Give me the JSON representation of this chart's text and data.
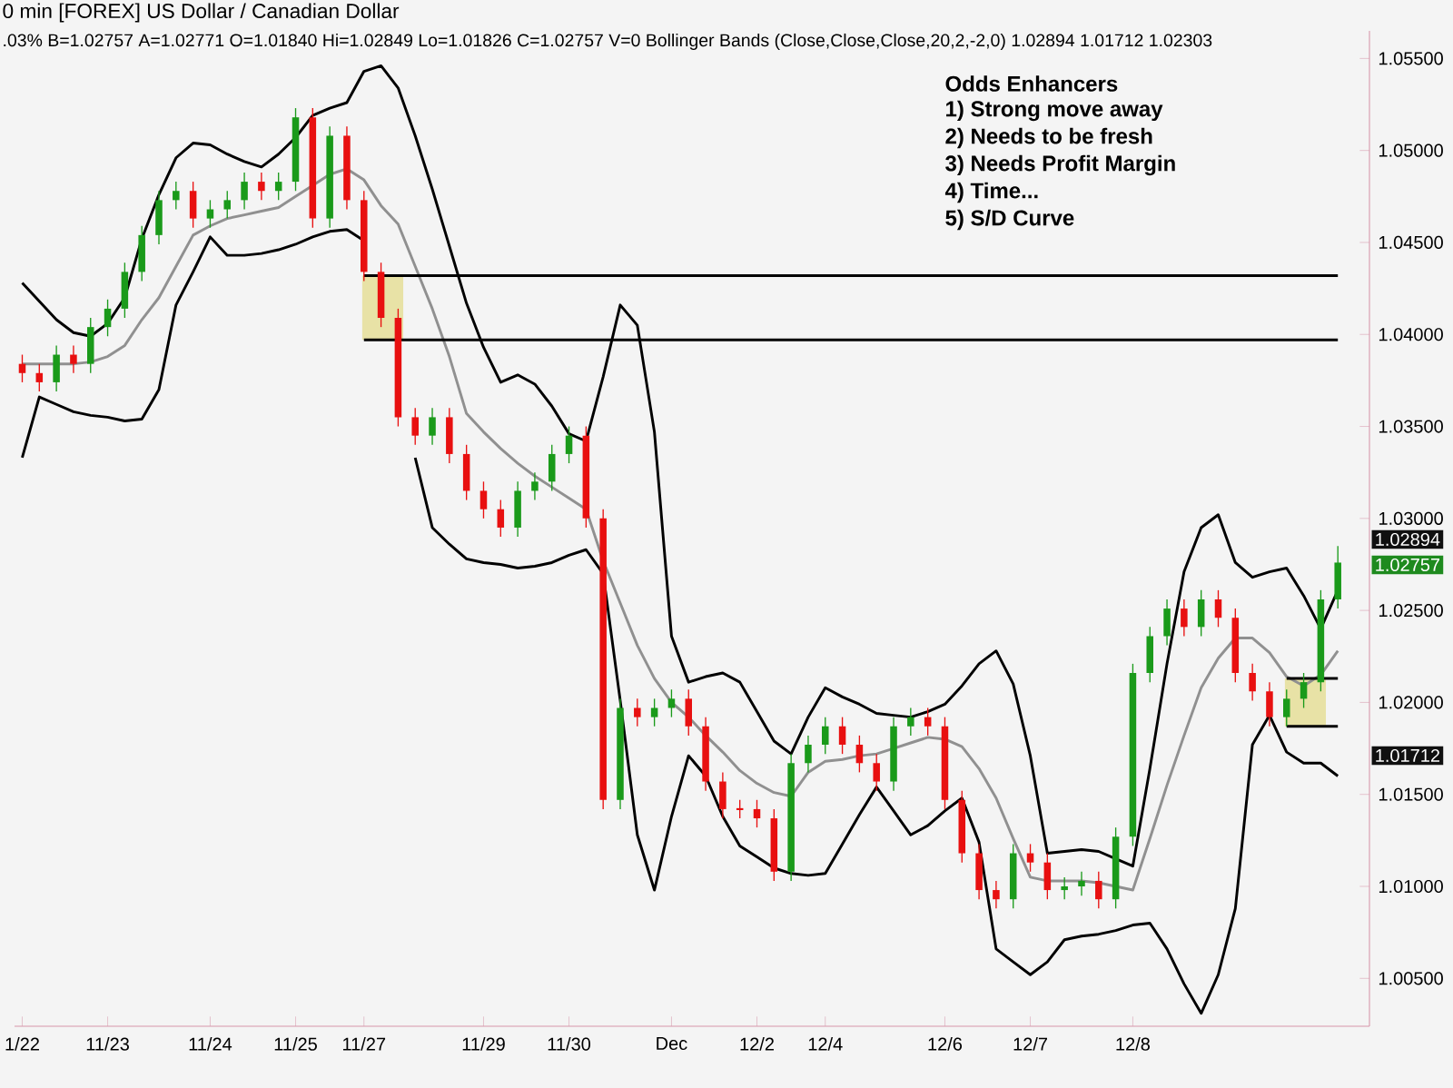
{
  "chart_data": {
    "type": "candlestick",
    "title": "0 min [FOREX] US Dollar / Canadian Dollar",
    "subtitle": ".03%  B=1.02757  A=1.02771  O=1.01840  Hi=1.02849  Lo=1.01826  C=1.02757  V=0  Bollinger Bands (Close,Close,Close,20,2,-2,0)  1.02894  1.01712  1.02303",
    "categories": [
      "1/22",
      null,
      null,
      null,
      null,
      "11/23",
      null,
      null,
      null,
      null,
      null,
      "11/24",
      null,
      null,
      null,
      null,
      "11/25",
      null,
      null,
      null,
      "11/27",
      null,
      null,
      null,
      null,
      null,
      null,
      "11/29",
      null,
      null,
      null,
      null,
      "11/30",
      null,
      null,
      null,
      null,
      null,
      "Dec",
      null,
      null,
      null,
      null,
      "12/2",
      null,
      null,
      null,
      "12/4",
      null,
      null,
      null,
      null,
      null,
      null,
      "12/6",
      null,
      null,
      null,
      null,
      "12/7",
      null,
      null,
      null,
      null,
      null,
      "12/8",
      null,
      null,
      null,
      null,
      null,
      null,
      null,
      null,
      null,
      null,
      null,
      null
    ],
    "ohlc": [
      [
        1.0384,
        1.0389,
        1.0374,
        1.0379
      ],
      [
        1.0379,
        1.0384,
        1.0369,
        1.0374
      ],
      [
        1.0374,
        1.0394,
        1.0369,
        1.0389
      ],
      [
        1.0389,
        1.0394,
        1.0379,
        1.0384
      ],
      [
        1.0384,
        1.0409,
        1.0379,
        1.0404
      ],
      [
        1.0404,
        1.0419,
        1.0399,
        1.0414
      ],
      [
        1.0414,
        1.0439,
        1.0409,
        1.0434
      ],
      [
        1.0434,
        1.0459,
        1.0429,
        1.0454
      ],
      [
        1.0454,
        1.0478,
        1.0449,
        1.0473
      ],
      [
        1.0473,
        1.0483,
        1.0468,
        1.0478
      ],
      [
        1.0478,
        1.0483,
        1.0458,
        1.0463
      ],
      [
        1.0463,
        1.0473,
        1.0458,
        1.0468
      ],
      [
        1.0468,
        1.0478,
        1.0463,
        1.0473
      ],
      [
        1.0473,
        1.0488,
        1.0468,
        1.0483
      ],
      [
        1.0483,
        1.0488,
        1.0473,
        1.0478
      ],
      [
        1.0478,
        1.0488,
        1.0473,
        1.0483
      ],
      [
        1.0483,
        1.0523,
        1.0478,
        1.0518
      ],
      [
        1.0518,
        1.0523,
        1.0458,
        1.0463
      ],
      [
        1.0463,
        1.0513,
        1.0458,
        1.0508
      ],
      [
        1.0508,
        1.0513,
        1.0468,
        1.0473
      ],
      [
        1.0473,
        1.0478,
        1.0429,
        1.0434
      ],
      [
        1.0434,
        1.0439,
        1.0404,
        1.0409
      ],
      [
        1.0409,
        1.0414,
        1.035,
        1.0355
      ],
      [
        1.0355,
        1.036,
        1.034,
        1.0345
      ],
      [
        1.0345,
        1.036,
        1.034,
        1.0355
      ],
      [
        1.0355,
        1.036,
        1.033,
        1.0335
      ],
      [
        1.0335,
        1.034,
        1.031,
        1.0315
      ],
      [
        1.0315,
        1.032,
        1.03,
        1.0305
      ],
      [
        1.0305,
        1.031,
        1.029,
        1.0295
      ],
      [
        1.0295,
        1.032,
        1.029,
        1.0315
      ],
      [
        1.0315,
        1.0325,
        1.031,
        1.032
      ],
      [
        1.032,
        1.034,
        1.0315,
        1.0335
      ],
      [
        1.0335,
        1.035,
        1.033,
        1.0345
      ],
      [
        1.0345,
        1.035,
        1.0295,
        1.03
      ],
      [
        1.03,
        1.0305,
        1.0142,
        1.0147
      ],
      [
        1.0147,
        1.0202,
        1.0142,
        1.0197
      ],
      [
        1.0197,
        1.0202,
        1.0187,
        1.0192
      ],
      [
        1.0192,
        1.0202,
        1.0187,
        1.0197
      ],
      [
        1.0197,
        1.0207,
        1.0192,
        1.0202
      ],
      [
        1.0202,
        1.0207,
        1.0182,
        1.0187
      ],
      [
        1.0187,
        1.0192,
        1.0152,
        1.0157
      ],
      [
        1.0157,
        1.0162,
        1.0137,
        1.0142
      ],
      [
        1.0142,
        1.0147,
        1.0137,
        1.0142
      ],
      [
        1.0142,
        1.0147,
        1.0132,
        1.0137
      ],
      [
        1.0137,
        1.0142,
        1.0103,
        1.0108
      ],
      [
        1.0108,
        1.0172,
        1.0103,
        1.0167
      ],
      [
        1.0167,
        1.0182,
        1.0162,
        1.0177
      ],
      [
        1.0177,
        1.0192,
        1.0172,
        1.0187
      ],
      [
        1.0187,
        1.0192,
        1.0172,
        1.0177
      ],
      [
        1.0177,
        1.0182,
        1.0162,
        1.0167
      ],
      [
        1.0167,
        1.0172,
        1.0152,
        1.0157
      ],
      [
        1.0157,
        1.0192,
        1.0152,
        1.0187
      ],
      [
        1.0187,
        1.0197,
        1.0182,
        1.0192
      ],
      [
        1.0192,
        1.0197,
        1.0182,
        1.0187
      ],
      [
        1.0187,
        1.0192,
        1.0142,
        1.0147
      ],
      [
        1.0147,
        1.0152,
        1.0113,
        1.0118
      ],
      [
        1.0118,
        1.0123,
        1.0093,
        1.0098
      ],
      [
        1.0098,
        1.0103,
        1.0088,
        1.0093
      ],
      [
        1.0093,
        1.0123,
        1.0088,
        1.0118
      ],
      [
        1.0118,
        1.0123,
        1.0108,
        1.0113
      ],
      [
        1.0113,
        1.0118,
        1.0093,
        1.0098
      ],
      [
        1.0098,
        1.0105,
        1.0093,
        1.01
      ],
      [
        1.01,
        1.0108,
        1.0095,
        1.0103
      ],
      [
        1.0103,
        1.0108,
        1.0088,
        1.0093
      ],
      [
        1.0093,
        1.0132,
        1.0088,
        1.0127
      ],
      [
        1.0127,
        1.0221,
        1.0122,
        1.0216
      ],
      [
        1.0216,
        1.0241,
        1.0211,
        1.0236
      ],
      [
        1.0236,
        1.0256,
        1.0231,
        1.0251
      ],
      [
        1.0251,
        1.0256,
        1.0236,
        1.0241
      ],
      [
        1.0241,
        1.0261,
        1.0236,
        1.0256
      ],
      [
        1.0256,
        1.0261,
        1.0241,
        1.0246
      ],
      [
        1.0246,
        1.0251,
        1.0211,
        1.0216
      ],
      [
        1.0216,
        1.0221,
        1.0201,
        1.0206
      ],
      [
        1.0206,
        1.0211,
        1.0187,
        1.0192
      ],
      [
        1.0192,
        1.0207,
        1.0187,
        1.0202
      ],
      [
        1.0202,
        1.0216,
        1.0197,
        1.0211
      ],
      [
        1.0211,
        1.0261,
        1.0206,
        1.0256
      ],
      [
        1.0256,
        1.0285,
        1.0251,
        1.0276
      ]
    ],
    "colors": [
      "#e81010",
      "#e81010",
      "#1a9a1a",
      "#e81010",
      "#1a9a1a",
      "#1a9a1a",
      "#1a9a1a",
      "#1a9a1a",
      "#1a9a1a",
      "#1a9a1a",
      "#e81010",
      "#1a9a1a",
      "#1a9a1a",
      "#1a9a1a",
      "#e81010",
      "#1a9a1a",
      "#1a9a1a",
      "#e81010",
      "#1a9a1a",
      "#e81010",
      "#e81010",
      "#e81010",
      "#e81010",
      "#e81010",
      "#1a9a1a",
      "#e81010",
      "#e81010",
      "#e81010",
      "#e81010",
      "#1a9a1a",
      "#1a9a1a",
      "#1a9a1a",
      "#1a9a1a",
      "#e81010",
      "#e81010",
      "#1a9a1a",
      "#e81010",
      "#1a9a1a",
      "#1a9a1a",
      "#e81010",
      "#e81010",
      "#e81010",
      "#e81010",
      "#e81010",
      "#e81010",
      "#1a9a1a",
      "#1a9a1a",
      "#1a9a1a",
      "#e81010",
      "#e81010",
      "#e81010",
      "#1a9a1a",
      "#1a9a1a",
      "#e81010",
      "#e81010",
      "#e81010",
      "#e81010",
      "#e81010",
      "#1a9a1a",
      "#e81010",
      "#e81010",
      "#1a9a1a",
      "#1a9a1a",
      "#e81010",
      "#1a9a1a",
      "#1a9a1a",
      "#1a9a1a",
      "#1a9a1a",
      "#e81010",
      "#1a9a1a",
      "#e81010",
      "#e81010",
      "#e81010",
      "#e81010",
      "#1a9a1a",
      "#1a9a1a",
      "#1a9a1a",
      "#1a9a1a"
    ],
    "series": [
      {
        "type": "line",
        "color": "#000000",
        "values": [
          1.0428,
          1.0418,
          1.0408,
          1.0401,
          1.0399,
          1.0406,
          1.042,
          1.0452,
          1.0476,
          1.0496,
          1.0504,
          1.0503,
          1.0498,
          1.0494,
          1.0491,
          1.0498,
          1.0507,
          1.0519,
          1.0523,
          1.0526,
          1.0543,
          1.0546,
          1.0534,
          1.0508,
          1.0479,
          1.0448,
          1.0417,
          1.0393,
          1.0374,
          1.0378,
          1.0373,
          1.0361,
          1.0346,
          1.0342,
          1.0377,
          1.0416,
          1.0405,
          1.0347,
          1.0236,
          1.0211,
          1.0214,
          1.0216,
          1.0211,
          1.0195,
          1.0179,
          1.0172,
          1.0192,
          1.0208,
          1.0203,
          1.0199,
          1.0194,
          1.0193,
          1.0192,
          1.0195,
          1.0199,
          1.0209,
          1.0221,
          1.0228,
          1.021,
          1.0171,
          1.0118,
          1.0119,
          1.012,
          1.0119,
          1.0115,
          1.0111,
          1.0164,
          1.0221,
          1.0271,
          1.0295,
          1.0302,
          1.0276,
          1.0268,
          1.0271,
          1.0273,
          1.0258,
          1.024,
          1.0261
        ]
      },
      {
        "type": "line",
        "color": "#000000",
        "values": [
          1.0333,
          1.0366,
          1.0362,
          1.0358,
          1.0356,
          1.0355,
          1.0353,
          1.0354,
          1.037,
          1.0416,
          1.0434,
          1.0453,
          1.0443,
          1.0443,
          1.0444,
          1.0446,
          1.0449,
          1.0453,
          1.0456,
          1.0457,
          1.0451,
          null,
          null,
          1.0333,
          1.0295,
          1.0286,
          1.0278,
          1.0276,
          1.0275,
          1.0273,
          1.0274,
          1.0276,
          1.028,
          1.0283,
          1.027,
          1.0201,
          1.0128,
          1.0098,
          1.0138,
          1.0171,
          1.016,
          1.0138,
          1.0122,
          1.0116,
          1.011,
          1.0107,
          1.0106,
          1.0107,
          1.0123,
          1.0139,
          1.0154,
          1.0141,
          1.0128,
          1.0133,
          1.0141,
          1.0148,
          1.0124,
          1.0066,
          1.0059,
          1.0052,
          1.0059,
          1.0071,
          1.0073,
          1.0074,
          1.0076,
          1.0079,
          1.008,
          1.0066,
          1.0047,
          1.0031,
          1.0052,
          1.0088,
          1.0177,
          1.0193,
          1.0173,
          1.0167,
          1.0167,
          1.016
        ]
      },
      {
        "type": "line",
        "color": "#909090",
        "values": [
          1.0384,
          1.0384,
          1.0384,
          1.0384,
          1.0385,
          1.0388,
          1.0394,
          1.0408,
          1.042,
          1.0437,
          1.0454,
          1.0459,
          1.0463,
          1.0465,
          1.0467,
          1.0469,
          1.0475,
          1.0481,
          1.0487,
          1.049,
          1.0484,
          1.047,
          1.046,
          1.0437,
          1.0414,
          1.0388,
          1.0357,
          1.0347,
          1.0338,
          1.033,
          1.0323,
          1.0317,
          1.0311,
          1.0305,
          1.0277,
          1.0254,
          1.0231,
          1.0213,
          1.02,
          1.0192,
          1.0182,
          1.0173,
          1.0163,
          1.0156,
          1.0151,
          1.0149,
          1.0162,
          1.0168,
          1.0169,
          1.0171,
          1.0172,
          1.0175,
          1.0178,
          1.0181,
          1.018,
          1.0176,
          1.0164,
          1.0148,
          1.0126,
          1.0105,
          1.0103,
          1.0103,
          1.0103,
          1.0102,
          1.01,
          1.0098,
          1.0126,
          1.0155,
          1.0182,
          1.0208,
          1.0224,
          1.0235,
          1.0235,
          1.0227,
          1.0214,
          1.0209,
          1.0215,
          1.0228
        ]
      },
      {
        "type": "line",
        "color": "#000000",
        "values": [
          null,
          null,
          null,
          null,
          null,
          null,
          null,
          null,
          null,
          null,
          null,
          null,
          null,
          null,
          null,
          null,
          null,
          null,
          null,
          null,
          1.0432,
          1.0432,
          1.0432,
          1.0432,
          1.0432,
          1.0432,
          1.0432,
          1.0432,
          1.0432,
          1.0432,
          1.0432,
          1.0432,
          1.0432,
          1.0432,
          1.0432,
          1.0432,
          1.0432,
          1.0432,
          1.0432,
          1.0432,
          1.0432,
          1.0432,
          1.0432,
          1.0432,
          1.0432,
          1.0432,
          1.0432,
          1.0432,
          1.0432,
          1.0432,
          1.0432,
          1.0432,
          1.0432,
          1.0432,
          1.0432,
          1.0432,
          1.0432,
          1.0432,
          1.0432,
          1.0432,
          1.0432,
          1.0432,
          1.0432,
          1.0432,
          1.0432,
          1.0432,
          1.0432,
          1.0432,
          1.0432,
          1.0432,
          1.0432,
          1.0432,
          1.0432,
          1.0432,
          1.0432,
          1.0432,
          1.0432,
          1.0432
        ]
      },
      {
        "type": "line",
        "color": "#000000",
        "values": [
          null,
          null,
          null,
          null,
          null,
          null,
          null,
          null,
          null,
          null,
          null,
          null,
          null,
          null,
          null,
          null,
          null,
          null,
          null,
          null,
          1.0397,
          1.0397,
          1.0397,
          1.0397,
          1.0397,
          1.0397,
          1.0397,
          1.0397,
          1.0397,
          1.0397,
          1.0397,
          1.0397,
          1.0397,
          1.0397,
          1.0397,
          1.0397,
          1.0397,
          1.0397,
          1.0397,
          1.0397,
          1.0397,
          1.0397,
          1.0397,
          1.0397,
          1.0397,
          1.0397,
          1.0397,
          1.0397,
          1.0397,
          1.0397,
          1.0397,
          1.0397,
          1.0397,
          1.0397,
          1.0397,
          1.0397,
          1.0397,
          1.0397,
          1.0397,
          1.0397,
          1.0397,
          1.0397,
          1.0397,
          1.0397,
          1.0397,
          1.0397,
          1.0397,
          1.0397,
          1.0397,
          1.0397,
          1.0397,
          1.0397,
          1.0397,
          1.0397,
          1.0397,
          1.0397,
          1.0397,
          1.0397
        ]
      },
      {
        "type": "line",
        "color": "#000000",
        "values": [
          null,
          null,
          null,
          null,
          null,
          null,
          null,
          null,
          null,
          null,
          null,
          null,
          null,
          null,
          null,
          null,
          null,
          null,
          null,
          null,
          null,
          null,
          null,
          null,
          null,
          null,
          null,
          null,
          null,
          null,
          null,
          null,
          null,
          null,
          null,
          null,
          null,
          null,
          null,
          null,
          null,
          null,
          null,
          null,
          null,
          null,
          null,
          null,
          null,
          null,
          null,
          null,
          null,
          null,
          null,
          null,
          null,
          null,
          null,
          null,
          null,
          null,
          null,
          null,
          null,
          null,
          null,
          null,
          null,
          null,
          null,
          null,
          null,
          null,
          1.0213,
          1.0213,
          1.0213,
          1.0213
        ]
      },
      {
        "type": "line",
        "color": "#000000",
        "values": [
          null,
          null,
          null,
          null,
          null,
          null,
          null,
          null,
          null,
          null,
          null,
          null,
          null,
          null,
          null,
          null,
          null,
          null,
          null,
          null,
          null,
          null,
          null,
          null,
          null,
          null,
          null,
          null,
          null,
          null,
          null,
          null,
          null,
          null,
          null,
          null,
          null,
          null,
          null,
          null,
          null,
          null,
          null,
          null,
          null,
          null,
          null,
          null,
          null,
          null,
          null,
          null,
          null,
          null,
          null,
          null,
          null,
          null,
          null,
          null,
          null,
          null,
          null,
          null,
          null,
          null,
          null,
          null,
          null,
          null,
          null,
          null,
          null,
          null,
          1.0187,
          1.0187,
          1.0187,
          1.0187
        ]
      }
    ],
    "ylim": [
      1.0024,
      1.0565
    ],
    "yticks": [
      {
        "value": 1.005,
        "label": "1.00500"
      },
      {
        "value": 1.01,
        "label": "1.01000"
      },
      {
        "value": 1.015,
        "label": "1.01500"
      },
      {
        "value": 1.02,
        "label": "1.02000"
      },
      {
        "value": 1.025,
        "label": "1.02500"
      },
      {
        "value": 1.03,
        "label": "1.03000"
      },
      {
        "value": 1.035,
        "label": "1.03500"
      },
      {
        "value": 1.04,
        "label": "1.04000"
      },
      {
        "value": 1.045,
        "label": "1.04500"
      },
      {
        "value": 1.05,
        "label": "1.05000"
      },
      {
        "value": 1.055,
        "label": "1.05500"
      }
    ],
    "annotations": [
      "Odds Enhancers",
      "1) Strong move away",
      "2) Needs to be fresh",
      "3) Needs Profit Margin",
      "4) Time...",
      "5) S/D Curve",
      "1.02894",
      "1.02757",
      "1.01712"
    ]
  }
}
